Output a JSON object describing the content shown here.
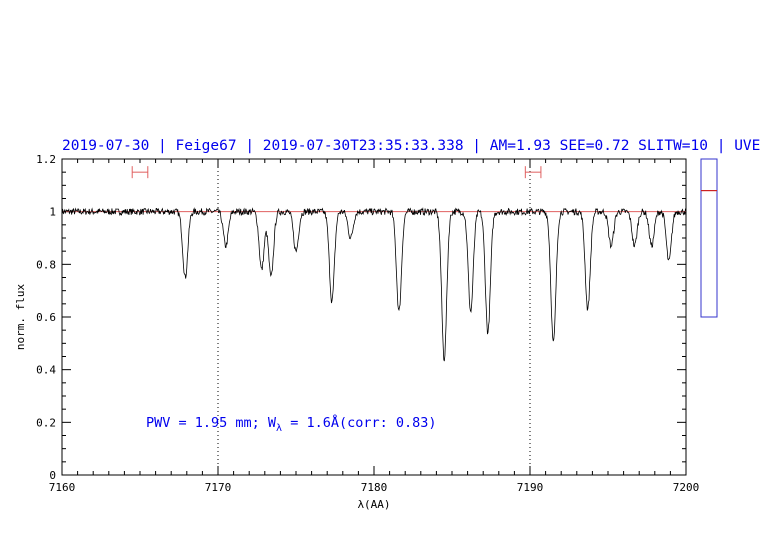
{
  "chart_data": {
    "type": "line",
    "title": "2019-07-30 | Feige67 | 2019-07-30T23:35:33.338 | AM=1.93  SEE=0.72  SLITW=10 | UVE",
    "xlabel": "λ(AA)",
    "ylabel": "norm. flux",
    "xlim": [
      7160,
      7200
    ],
    "ylim": [
      0,
      1.2
    ],
    "x_ticks": [
      7160,
      7170,
      7180,
      7190,
      7200
    ],
    "y_ticks": [
      0,
      0.2,
      0.4,
      0.6,
      0.8,
      1,
      1.2
    ],
    "x_tick_labels": [
      "7160",
      "7170",
      "7180",
      "7190",
      "7200"
    ],
    "y_tick_labels": [
      "0",
      "0.2",
      "0.4",
      "0.6",
      "0.8",
      "1",
      "1.2"
    ],
    "continuum_level": 1.0,
    "continuum_color": "#e06060",
    "spectrum_color": "#000000",
    "vertical_reference_lines": [
      7170,
      7190
    ],
    "intervals": [
      {
        "range": [
          7164.5,
          7165.5
        ],
        "y": 1.15
      },
      {
        "range": [
          7189.7,
          7190.7
        ],
        "y": 1.15
      }
    ],
    "absorption_lines": [
      {
        "center": 7167.9,
        "depth": 0.25
      },
      {
        "center": 7170.5,
        "depth": 0.13
      },
      {
        "center": 7172.8,
        "depth": 0.22
      },
      {
        "center": 7173.4,
        "depth": 0.25
      },
      {
        "center": 7175.0,
        "depth": 0.15
      },
      {
        "center": 7177.3,
        "depth": 0.34
      },
      {
        "center": 7178.5,
        "depth": 0.1
      },
      {
        "center": 7181.6,
        "depth": 0.38
      },
      {
        "center": 7184.5,
        "depth": 0.56
      },
      {
        "center": 7186.2,
        "depth": 0.38
      },
      {
        "center": 7187.3,
        "depth": 0.46
      },
      {
        "center": 7191.5,
        "depth": 0.5
      },
      {
        "center": 7193.7,
        "depth": 0.37
      },
      {
        "center": 7195.2,
        "depth": 0.13
      },
      {
        "center": 7196.7,
        "depth": 0.13
      },
      {
        "center": 7197.8,
        "depth": 0.13
      },
      {
        "center": 7198.9,
        "depth": 0.19
      }
    ],
    "annotation": {
      "prefix": "PWV = 1.95 mm; W",
      "subscript": "λ",
      "suffix": " = 1.6Å(corr: 0.83)"
    },
    "side_panel": {
      "ylim": [
        0,
        1
      ],
      "marker_value": 0.2
    }
  }
}
